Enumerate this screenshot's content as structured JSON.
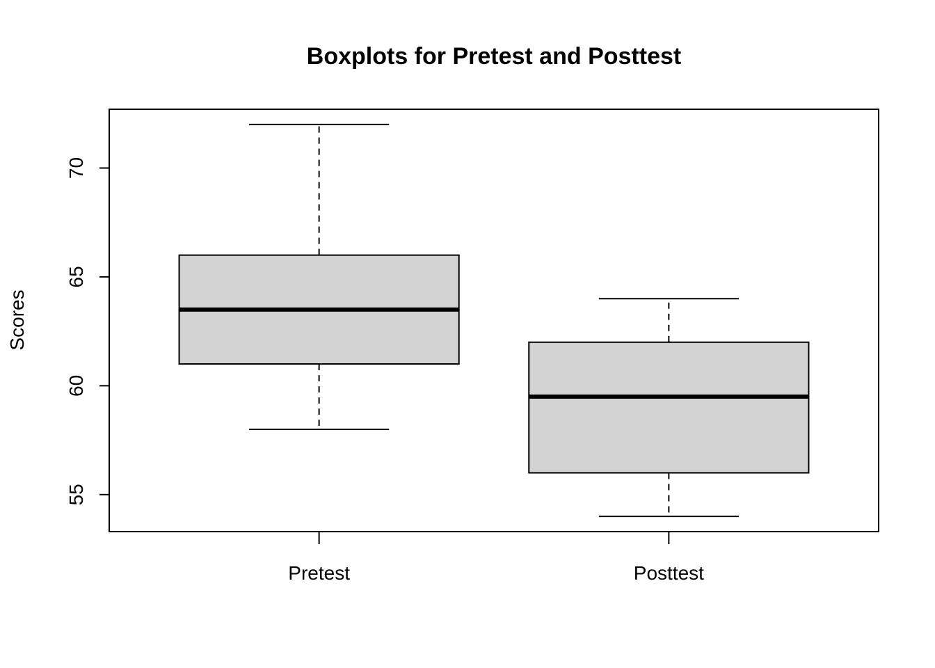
{
  "chart_data": {
    "type": "box",
    "title": "Boxplots for Pretest and Posttest",
    "xlabel": "",
    "ylabel": "Scores",
    "ylim": [
      53.3,
      72.7
    ],
    "yticks": [
      "55",
      "60",
      "65",
      "70"
    ],
    "ytick_values": [
      55,
      60,
      65,
      70
    ],
    "grid": false,
    "legend": "none",
    "box_fill": "#d3d3d3",
    "line_color": "#000000",
    "categories": [
      "Pretest",
      "Posttest"
    ],
    "boxes": [
      {
        "min": 58,
        "q1": 61,
        "median": 63.5,
        "q3": 66,
        "max": 72
      },
      {
        "min": 54,
        "q1": 56,
        "median": 59.5,
        "q3": 62,
        "max": 64
      }
    ]
  }
}
